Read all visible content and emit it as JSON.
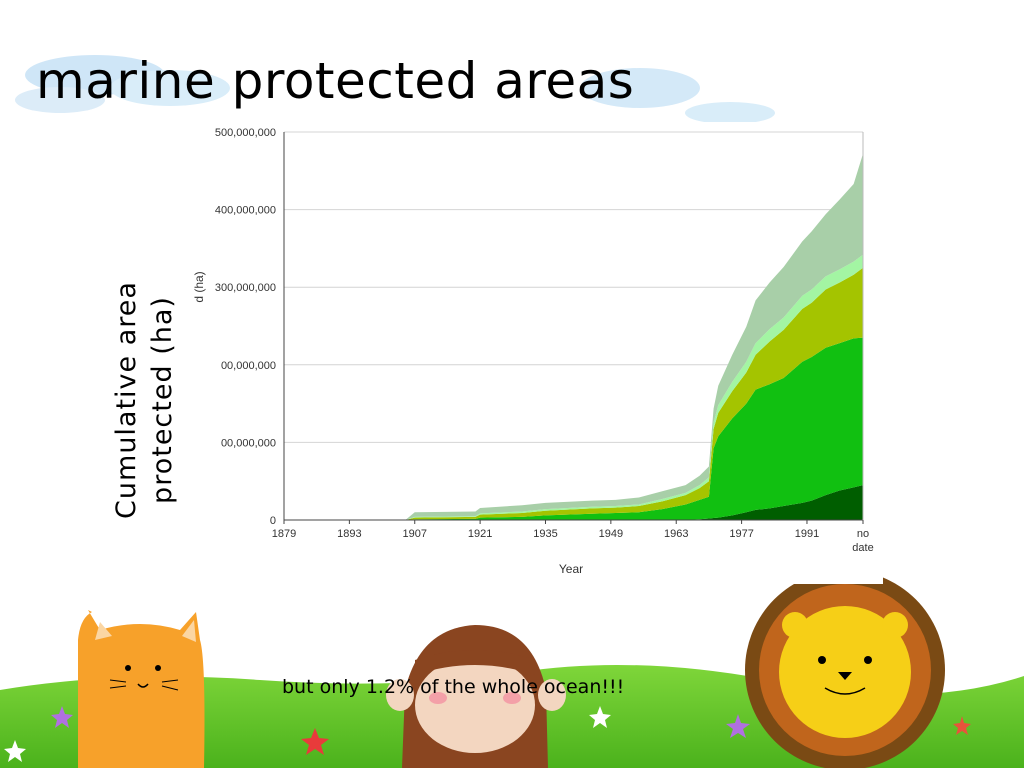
{
  "slide": {
    "title": "marine protected areas",
    "side_label_line1": "Cumulative area",
    "side_label_line2": "protected (ha)",
    "footer": "but only 1.2% of the whole ocean!!!"
  },
  "chart_data": {
    "type": "area",
    "xlabel": "Year",
    "ylabel": "d (ha)",
    "x_tick_labels": [
      "1879",
      "1893",
      "1907",
      "1921",
      "1935",
      "1949",
      "1963",
      "1977",
      "1991",
      [
        "no",
        "date"
      ]
    ],
    "y_tick_labels": [
      "0",
      "00,000,000",
      "00,000,000",
      "300,000,000",
      "400,000,000",
      "500,000,000"
    ],
    "ylim": [
      0,
      500000000
    ],
    "grid": "horizontal",
    "stacked": true,
    "x_years": [
      1879,
      1905,
      1907,
      1920,
      1921,
      1930,
      1935,
      1945,
      1950,
      1955,
      1960,
      1965,
      1968,
      1970,
      1971,
      1972,
      1975,
      1978,
      1980,
      1983,
      1986,
      1990,
      1992,
      1995,
      1998,
      2001,
      2003
    ],
    "series": [
      {
        "color": "#005e00",
        "values": [
          0,
          0,
          0,
          0,
          0,
          0,
          0,
          0,
          0,
          0,
          0,
          0,
          1000000,
          2000000,
          2500000,
          3000000,
          6000000,
          10000000,
          13000000,
          15000000,
          18000000,
          22000000,
          25000000,
          32000000,
          38000000,
          42000000,
          45000000
        ]
      },
      {
        "color": "#11c011",
        "values": [
          0,
          0,
          1000000,
          1500000,
          3000000,
          4000000,
          6000000,
          8000000,
          9000000,
          10000000,
          14000000,
          20000000,
          25000000,
          28000000,
          90000000,
          105000000,
          125000000,
          140000000,
          155000000,
          160000000,
          165000000,
          182000000,
          185000000,
          190000000,
          190000000,
          192000000,
          190000000
        ]
      },
      {
        "color": "#a4c400",
        "values": [
          0,
          0,
          2000000,
          2500000,
          4000000,
          5000000,
          6000000,
          7000000,
          7000000,
          8000000,
          10000000,
          12000000,
          15000000,
          20000000,
          25000000,
          30000000,
          35000000,
          40000000,
          45000000,
          55000000,
          62000000,
          68000000,
          70000000,
          75000000,
          78000000,
          82000000,
          90000000
        ]
      },
      {
        "color": "#a3f5a3",
        "values": [
          0,
          0,
          1000000,
          1000000,
          1500000,
          2000000,
          2000000,
          2000000,
          2000000,
          2000000,
          3000000,
          3000000,
          4000000,
          5000000,
          8000000,
          10000000,
          12000000,
          14000000,
          15000000,
          16000000,
          16000000,
          17000000,
          17000000,
          17000000,
          17000000,
          17000000,
          17000000
        ]
      },
      {
        "color": "#a8cfa8",
        "values": [
          0,
          0,
          6000000,
          6000000,
          7000000,
          8000000,
          8000000,
          8000000,
          8000000,
          9000000,
          10000000,
          10000000,
          12000000,
          14000000,
          18000000,
          25000000,
          35000000,
          45000000,
          55000000,
          60000000,
          65000000,
          70000000,
          75000000,
          80000000,
          90000000,
          100000000,
          130000000
        ]
      }
    ]
  }
}
